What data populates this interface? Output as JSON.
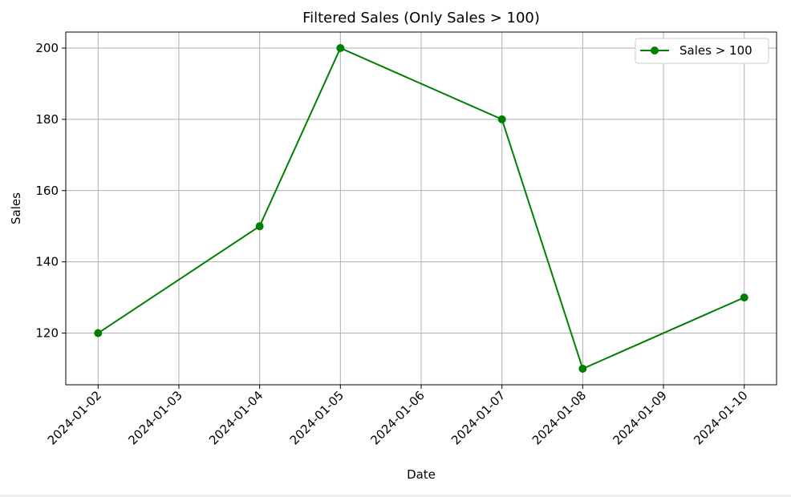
{
  "chart_data": {
    "type": "line",
    "title": "Filtered Sales (Only Sales > 100)",
    "x_label": "Date",
    "y_label": "Sales",
    "x": [
      "2024-01-02",
      "2024-01-04",
      "2024-01-05",
      "2024-01-07",
      "2024-01-08",
      "2024-01-10"
    ],
    "series": [
      {
        "name": "Sales > 100",
        "color": "#008000",
        "values": [
          120,
          150,
          200,
          180,
          110,
          130
        ]
      }
    ],
    "xlim": [
      "2024-01-01T14:24",
      "2024-01-10T09:36"
    ],
    "xticks": [
      "2024-01-02",
      "2024-01-03",
      "2024-01-04",
      "2024-01-05",
      "2024-01-06",
      "2024-01-07",
      "2024-01-08",
      "2024-01-09",
      "2024-01-10"
    ],
    "ylim": [
      105.5,
      204.5
    ],
    "yticks": [
      120,
      140,
      160,
      180,
      200
    ],
    "grid": true,
    "legend": "upper right"
  }
}
